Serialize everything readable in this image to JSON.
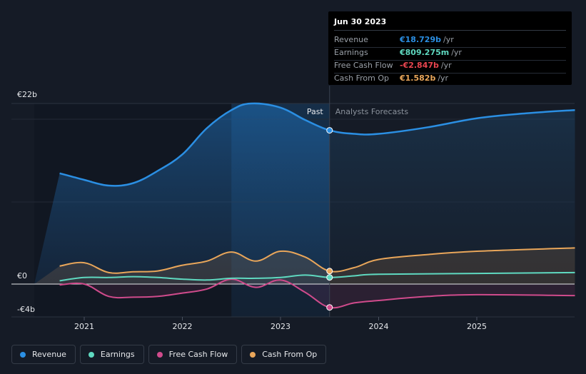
{
  "chart_data": {
    "type": "line",
    "y_axis": {
      "top_label": "€22b",
      "zero_label": "€0",
      "bottom_label": "-€4b",
      "ylim": [
        -4,
        22
      ]
    },
    "x_axis": {
      "ticks": [
        "2021",
        "2022",
        "2023",
        "2024",
        "2025"
      ],
      "xlim": [
        2020.78,
        2026.0
      ]
    },
    "region_labels": {
      "past": "Past",
      "forecast": "Analysts Forecasts"
    },
    "past_highlight_start": 2022.5,
    "divider_x": 2023.5,
    "series": [
      {
        "name": "Revenue",
        "color": "#2b8fe3",
        "x": [
          2020.75,
          2021.0,
          2021.25,
          2021.5,
          2021.75,
          2022.0,
          2022.25,
          2022.5,
          2022.7,
          2023.0,
          2023.25,
          2023.5,
          2023.75,
          2024.0,
          2024.5,
          2025.0,
          2025.5,
          2026.0
        ],
        "y": [
          13.5,
          12.7,
          12.0,
          12.3,
          13.8,
          15.8,
          19.0,
          21.2,
          22.0,
          21.5,
          20.0,
          18.729,
          18.3,
          18.3,
          19.1,
          20.2,
          20.8,
          21.2
        ]
      },
      {
        "name": "Earnings",
        "color": "#5fd9c0",
        "x": [
          2020.75,
          2021.0,
          2021.25,
          2021.5,
          2021.75,
          2022.0,
          2022.25,
          2022.5,
          2022.75,
          2023.0,
          2023.25,
          2023.5,
          2023.75,
          2024.0,
          2025.0,
          2026.0
        ],
        "y": [
          0.4,
          0.8,
          0.8,
          0.9,
          0.8,
          0.6,
          0.5,
          0.7,
          0.7,
          0.8,
          1.1,
          0.809,
          1.0,
          1.2,
          1.3,
          1.4
        ]
      },
      {
        "name": "Free Cash Flow",
        "color": "#d04b8c",
        "x": [
          2020.75,
          2021.0,
          2021.25,
          2021.5,
          2021.75,
          2022.0,
          2022.25,
          2022.5,
          2022.75,
          2023.0,
          2023.25,
          2023.5,
          2023.75,
          2024.0,
          2024.5,
          2025.0,
          2026.0
        ],
        "y": [
          -0.1,
          0.0,
          -1.5,
          -1.6,
          -1.5,
          -1.1,
          -0.6,
          0.6,
          -0.4,
          0.5,
          -1.0,
          -2.847,
          -2.3,
          -2.0,
          -1.5,
          -1.3,
          -1.4
        ]
      },
      {
        "name": "Cash From Op",
        "color": "#e9a65a",
        "x": [
          2020.75,
          2021.0,
          2021.25,
          2021.5,
          2021.75,
          2022.0,
          2022.25,
          2022.5,
          2022.75,
          2023.0,
          2023.25,
          2023.5,
          2023.75,
          2024.0,
          2024.5,
          2025.0,
          2026.0
        ],
        "y": [
          2.2,
          2.6,
          1.4,
          1.5,
          1.6,
          2.3,
          2.8,
          3.9,
          2.8,
          4.0,
          3.3,
          1.582,
          2.0,
          3.0,
          3.6,
          4.0,
          4.4
        ]
      }
    ]
  },
  "tooltip": {
    "date": "Jun 30 2023",
    "rows": [
      {
        "name": "Revenue",
        "value": "€18.729b",
        "unit": "/yr",
        "color": "#2b8fe3"
      },
      {
        "name": "Earnings",
        "value": "€809.275m",
        "unit": "/yr",
        "color": "#5fd9c0"
      },
      {
        "name": "Free Cash Flow",
        "value": "-€2.847b",
        "unit": "/yr",
        "color": "#e8454f"
      },
      {
        "name": "Cash From Op",
        "value": "€1.582b",
        "unit": "/yr",
        "color": "#e9a65a"
      }
    ]
  },
  "legend": [
    {
      "label": "Revenue",
      "color": "#2b8fe3"
    },
    {
      "label": "Earnings",
      "color": "#5fd9c0"
    },
    {
      "label": "Free Cash Flow",
      "color": "#d04b8c"
    },
    {
      "label": "Cash From Op",
      "color": "#e9a65a"
    }
  ]
}
